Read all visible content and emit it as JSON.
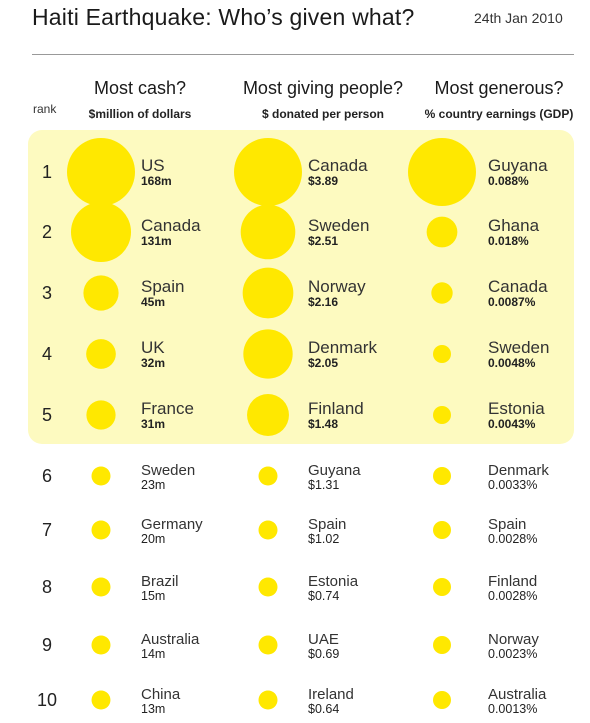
{
  "header": {
    "title": "Haiti Earthquake: Who’s given what?",
    "date": "24th Jan 2010",
    "rank_label": "rank"
  },
  "columns": [
    {
      "title": "Most cash?",
      "subtitle": "$million of dollars"
    },
    {
      "title": "Most giving people?",
      "subtitle": "$ donated per person"
    },
    {
      "title": "Most generous?",
      "subtitle": "% country earnings (GDP)"
    }
  ],
  "chart_data": {
    "type": "table",
    "ranks": [
      1,
      2,
      3,
      4,
      5,
      6,
      7,
      8,
      9,
      10
    ],
    "highlighted_ranks": 5,
    "bubble_color": "#ffe800",
    "highlight_color": "#fdfac0",
    "series": [
      {
        "name": "Most cash?",
        "countries": [
          "US",
          "Canada",
          "Spain",
          "UK",
          "France",
          "Sweden",
          "Germany",
          "Brazil",
          "Australia",
          "China"
        ],
        "values": [
          168,
          131,
          45,
          32,
          31,
          23,
          20,
          15,
          14,
          13
        ],
        "labels": [
          "168m",
          "131m",
          "45m",
          "32m",
          "31m",
          "23m",
          "20m",
          "15m",
          "14m",
          "13m"
        ]
      },
      {
        "name": "Most giving people?",
        "countries": [
          "Canada",
          "Sweden",
          "Norway",
          "Denmark",
          "Finland",
          "Guyana",
          "Spain",
          "Estonia",
          "UAE",
          "Ireland"
        ],
        "values": [
          3.89,
          2.51,
          2.16,
          2.05,
          1.48,
          1.31,
          1.02,
          0.74,
          0.69,
          0.64
        ],
        "labels": [
          "$3.89",
          "$2.51",
          "$2.16",
          "$2.05",
          "$1.48",
          "$1.31",
          "$1.02",
          "$0.74",
          "$0.69",
          "$0.64"
        ]
      },
      {
        "name": "Most generous?",
        "countries": [
          "Guyana",
          "Ghana",
          "Canada",
          "Sweden",
          "Estonia",
          "Denmark",
          "Spain",
          "Finland",
          "Norway",
          "Australia"
        ],
        "values": [
          0.088,
          0.018,
          0.0087,
          0.0048,
          0.0043,
          0.0033,
          0.0028,
          0.0028,
          0.0023,
          0.0013
        ],
        "labels": [
          "0.088%",
          "0.018%",
          "0.0087%",
          "0.0048%",
          "0.0043%",
          "0.0033%",
          "0.0028%",
          "0.0028%",
          "0.0023%",
          "0.0013%"
        ]
      }
    ]
  }
}
